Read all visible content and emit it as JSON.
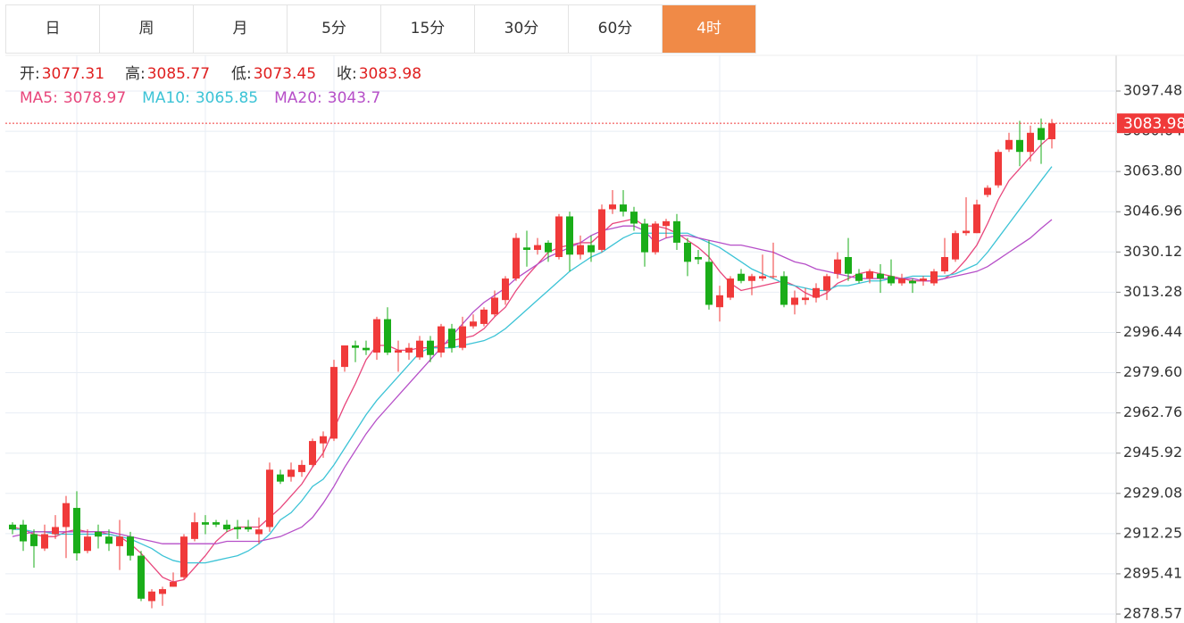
{
  "tabs": [
    "日",
    "周",
    "月",
    "5分",
    "15分",
    "30分",
    "60分",
    "4时"
  ],
  "active_tab": 7,
  "chart_data": {
    "type": "candlestick",
    "info_labels": {
      "open": "开:",
      "high": "高:",
      "low": "低:",
      "close": "收:"
    },
    "up_color": "#f03a3a",
    "down_color": "#1aad19",
    "ohlc": {
      "open": [
        2916,
        2916,
        2912,
        2906,
        2912,
        2915,
        2923,
        2905,
        2913,
        2911,
        2907,
        2911,
        2903,
        2884,
        2887,
        2890,
        2894,
        2910,
        2917,
        2917,
        2916,
        2915,
        2915,
        2912,
        2915,
        2937,
        2936,
        2938,
        2941,
        2950,
        2952,
        2982,
        2991,
        2990,
        2988,
        3002,
        2988,
        2988,
        2986,
        2993,
        2988,
        2998,
        2990,
        2999,
        3000,
        3004,
        3010,
        3019,
        3032,
        3031,
        3034,
        3028,
        3045,
        3029,
        3033,
        3031,
        3048,
        3050,
        3047,
        3042,
        3030,
        3041,
        3043,
        3034,
        3028,
        3026,
        3007,
        3011,
        3021,
        3018,
        3019,
        3020,
        3020,
        3008,
        3010,
        3011,
        3014,
        3021,
        3028,
        3021,
        3019,
        3021,
        3020,
        3017,
        3018,
        3018,
        3017,
        3022,
        3027,
        3038,
        3038,
        3054,
        3058,
        3073,
        3077,
        3072,
        3082,
        3077.31
      ],
      "high": [
        2917,
        2918,
        2914,
        2916,
        2920,
        2928,
        2930,
        2914,
        2916,
        2914,
        2918,
        2913,
        2905,
        2889,
        2890,
        2896,
        2912,
        2921,
        2920,
        2918,
        2918,
        2918,
        2918,
        2919,
        2942,
        2939,
        2942,
        2943,
        2952,
        2955,
        2985,
        2991,
        2993,
        2993,
        3003,
        3007,
        2993,
        2992,
        2995,
        2995,
        3000,
        3000,
        3003,
        3004,
        3007,
        3014,
        3020,
        3038,
        3039,
        3036,
        3035,
        3046,
        3047,
        3037,
        3037,
        3050,
        3056,
        3056,
        3049,
        3044,
        3043,
        3044,
        3046,
        3036,
        3031,
        3035,
        3016,
        3020,
        3023,
        3021,
        3029,
        3034,
        3022,
        3014,
        3015,
        3017,
        3021,
        3030,
        3036,
        3023,
        3023,
        3025,
        3027,
        3021,
        3019,
        3020,
        3023,
        3036,
        3039,
        3053,
        3052,
        3058,
        3073,
        3080,
        3085,
        3083,
        3086,
        3085.77
      ],
      "low": [
        2912,
        2905,
        2898,
        2905,
        2910,
        2902,
        2901,
        2904,
        2906,
        2905,
        2897,
        2901,
        2884,
        2881,
        2882,
        2890,
        2893,
        2909,
        2912,
        2915,
        2913,
        2910,
        2913,
        2908,
        2913,
        2933,
        2934,
        2936,
        2940,
        2944,
        2951,
        2980,
        2984,
        2987,
        2985,
        2987,
        2980,
        2985,
        2985,
        2984,
        2986,
        2988,
        2989,
        2998,
        2999,
        3003,
        3008,
        3018,
        3024,
        3029,
        3026,
        3027,
        3022,
        3027,
        3026,
        3030,
        3046,
        3045,
        3039,
        3024,
        3029,
        3036,
        3031,
        3020,
        3025,
        3006,
        3001,
        3010,
        3017,
        3012,
        3018,
        3019,
        3007,
        3004,
        3008,
        3009,
        3010,
        3019,
        3018,
        3017,
        3017,
        3013,
        3016,
        3016,
        3013,
        3016,
        3016,
        3021,
        3026,
        3037,
        3038,
        3053,
        3057,
        3072,
        3066,
        3068,
        3067,
        3073.45
      ],
      "close": [
        2914,
        2909,
        2907,
        2912,
        2915,
        2925,
        2904,
        2911,
        2911,
        2908,
        2911,
        2903,
        2885,
        2888,
        2889,
        2892,
        2911,
        2917,
        2916,
        2916,
        2914,
        2914,
        2914,
        2914,
        2939,
        2934,
        2939,
        2941,
        2951,
        2953,
        2982,
        2991,
        2990,
        2989,
        3002,
        2988,
        2989,
        2990,
        2993,
        2987,
        2999,
        2990,
        2999,
        3001,
        3006,
        3011,
        3019,
        3036,
        3031,
        3033,
        3030,
        3045,
        3029,
        3033,
        3030,
        3048,
        3050,
        3047,
        3042,
        3030,
        3042,
        3043,
        3034,
        3026,
        3027,
        3008,
        3012,
        3019,
        3018,
        3020,
        3020,
        3020,
        3008,
        3011,
        3011,
        3015,
        3020,
        3027,
        3021,
        3018,
        3022,
        3019,
        3017,
        3019,
        3017,
        3019,
        3022,
        3028,
        3038,
        3039,
        3050,
        3057,
        3072,
        3077,
        3072,
        3080,
        3077,
        3083.98
      ]
    },
    "series": [
      {
        "name": "MA5:",
        "color": "#e8467c",
        "values": [
          2915,
          2914,
          2912,
          2911,
          2911,
          2913,
          2914,
          2913,
          2913,
          2912,
          2911,
          2908,
          2904,
          2899,
          2894,
          2892,
          2893,
          2898,
          2903,
          2909,
          2913,
          2915,
          2915,
          2915,
          2919,
          2923,
          2928,
          2933,
          2940,
          2946,
          2956,
          2966,
          2975,
          2985,
          2991,
          2991,
          2989,
          2989,
          2990,
          2990,
          2991,
          2993,
          2994,
          2995,
          2998,
          3003,
          3007,
          3014,
          3020,
          3025,
          3030,
          3032,
          3033,
          3034,
          3034,
          3038,
          3042,
          3043,
          3044,
          3041,
          3041,
          3040,
          3038,
          3035,
          3032,
          3028,
          3022,
          3017,
          3014,
          3015,
          3016,
          3017,
          3018,
          3016,
          3013,
          3011,
          3013,
          3017,
          3019,
          3021,
          3022,
          3021,
          3020,
          3019,
          3018,
          3018,
          3018,
          3019,
          3022,
          3027,
          3033,
          3042,
          3052,
          3060,
          3065,
          3070,
          3075,
          3078.97
        ]
      },
      {
        "name": "MA10:",
        "color": "#3cc3d6",
        "values": [
          2914,
          2914,
          2913,
          2913,
          2912,
          2912,
          2912,
          2912,
          2912,
          2912,
          2911,
          2910,
          2908,
          2906,
          2903,
          2901,
          2900,
          2900,
          2900,
          2901,
          2902,
          2903,
          2905,
          2908,
          2912,
          2918,
          2921,
          2926,
          2932,
          2935,
          2941,
          2948,
          2955,
          2962,
          2968,
          2973,
          2978,
          2983,
          2988,
          2990,
          2990,
          2990,
          2991,
          2992,
          2993,
          2995,
          2998,
          3002,
          3006,
          3010,
          3014,
          3018,
          3022,
          3025,
          3028,
          3030,
          3033,
          3036,
          3038,
          3038,
          3038,
          3038,
          3038,
          3038,
          3036,
          3034,
          3032,
          3029,
          3026,
          3023,
          3021,
          3019,
          3017,
          3016,
          3015,
          3014,
          3014,
          3016,
          3016,
          3017,
          3018,
          3018,
          3019,
          3019,
          3020,
          3020,
          3020,
          3020,
          3021,
          3023,
          3025,
          3030,
          3036,
          3042,
          3048,
          3054,
          3060,
          3065.85
        ]
      },
      {
        "name": "MA20:",
        "color": "#b64fc8",
        "values": [
          2911,
          2912,
          2913,
          2913,
          2913,
          2913,
          2913,
          2913,
          2913,
          2913,
          2912,
          2911,
          2910,
          2909,
          2908,
          2908,
          2908,
          2908,
          2908,
          2908,
          2909,
          2909,
          2909,
          2909,
          2910,
          2911,
          2913,
          2915,
          2919,
          2925,
          2932,
          2940,
          2947,
          2954,
          2960,
          2965,
          2970,
          2975,
          2980,
          2985,
          2990,
          2995,
          3000,
          3005,
          3009,
          3012,
          3015,
          3019,
          3022,
          3025,
          3028,
          3030,
          3032,
          3034,
          3037,
          3039,
          3040,
          3041,
          3041,
          3039,
          3034,
          3036,
          3037,
          3037,
          3036,
          3035,
          3034,
          3033,
          3033,
          3032,
          3031,
          3030,
          3028,
          3026,
          3025,
          3023,
          3022,
          3021,
          3020,
          3019,
          3019,
          3019,
          3019,
          3019,
          3019,
          3018,
          3018,
          3019,
          3020,
          3021,
          3022,
          3024,
          3027,
          3030,
          3033,
          3036,
          3040,
          3043.7
        ]
      }
    ],
    "ylim": [
      2874.83,
      3112.42
    ],
    "yticks": [
      2878.57,
      2895.41,
      2912.25,
      2929.08,
      2945.92,
      2962.76,
      {
        "value": 2979.6,
        "label": "2979.60"
      },
      2996.44,
      3013.28,
      3030.12,
      3046.96,
      {
        "value": 3063.8,
        "label": "3063.80"
      },
      3080.64,
      3097.48
    ],
    "grid": true
  }
}
